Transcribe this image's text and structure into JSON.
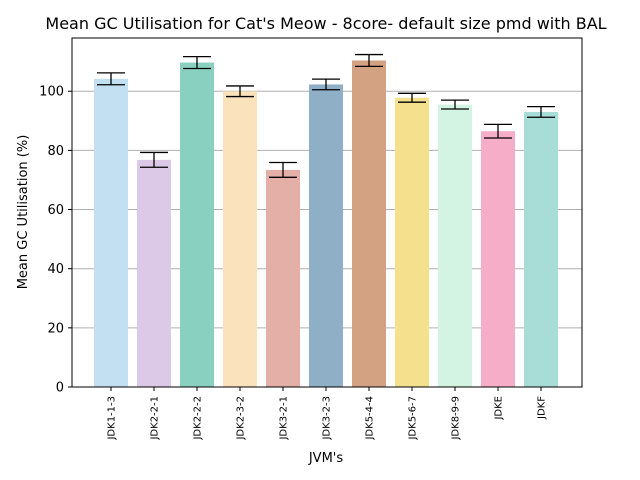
{
  "chart_data": {
    "type": "bar",
    "title": "Mean GC Utilisation for Cat's Meow - 8core- default size pmd with BAL",
    "xlabel": "JVM's",
    "ylabel": "Mean GC Utilisation (%)",
    "ylim": [
      0,
      118
    ],
    "yticks": [
      "0",
      "20",
      "40",
      "60",
      "80",
      "100"
    ],
    "grid": "horizontal",
    "categories": [
      "JDK1-1-3",
      "JDK2-2-1",
      "JDK2-2-2",
      "JDK2-3-2",
      "JDK3-2-1",
      "JDK3-2-3",
      "JDK5-4-4",
      "JDK5-6-7",
      "JDK8-9-9",
      "JDKE",
      "JDKF"
    ],
    "values": [
      104.2,
      76.8,
      109.7,
      100.0,
      73.4,
      102.3,
      110.4,
      97.8,
      95.5,
      86.5,
      93.0
    ],
    "errors": [
      2.0,
      2.5,
      2.0,
      1.8,
      2.5,
      1.8,
      2.0,
      1.5,
      1.5,
      2.3,
      1.8
    ],
    "colors": [
      "#c3e0f2",
      "#dcc8e7",
      "#8ad0c1",
      "#fae2bc",
      "#e3afa7",
      "#8fafc6",
      "#d3a283",
      "#f5e08e",
      "#d3f4e2",
      "#f6aec8",
      "#a7dcd7"
    ]
  }
}
